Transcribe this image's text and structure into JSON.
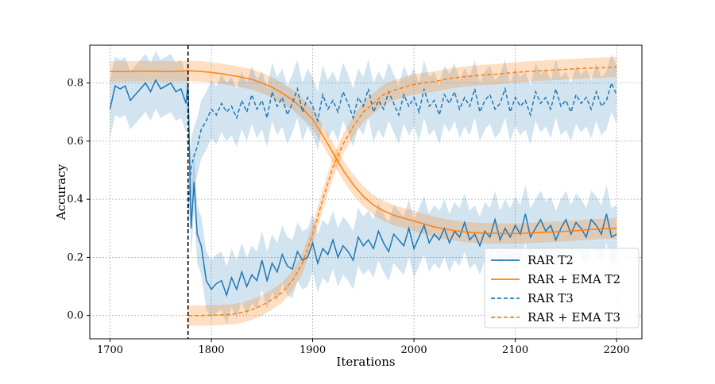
{
  "chart_data": {
    "type": "line",
    "title": "",
    "xlabel": "Iterations",
    "ylabel": "Accuracy",
    "xlim": [
      1680,
      2225
    ],
    "ylim": [
      -0.08,
      0.93
    ],
    "xticks": [
      1700,
      1800,
      1900,
      2000,
      2100,
      2200
    ],
    "yticks": [
      0.0,
      0.2,
      0.4,
      0.6,
      0.8
    ],
    "ytick_labels": [
      "0.0",
      "0.2",
      "0.4",
      "0.6",
      "0.8"
    ],
    "grid": true,
    "legend_position": "lower-right",
    "vline": {
      "x": 1777,
      "style": "dashed",
      "color": "#000000"
    },
    "colors": {
      "blue": "#1f77b4",
      "orange": "#ff7f0e"
    },
    "series": [
      {
        "name": "RAR T2",
        "color": "#1f77b4",
        "linestyle": "solid",
        "band": "blue",
        "x": [
          1700,
          1705,
          1710,
          1715,
          1720,
          1725,
          1730,
          1735,
          1740,
          1745,
          1750,
          1755,
          1760,
          1765,
          1770,
          1775,
          1777,
          1780,
          1783,
          1786,
          1790,
          1795,
          1800,
          1805,
          1810,
          1815,
          1820,
          1825,
          1830,
          1835,
          1840,
          1845,
          1850,
          1855,
          1860,
          1865,
          1870,
          1875,
          1880,
          1885,
          1890,
          1895,
          1900,
          1905,
          1910,
          1915,
          1920,
          1925,
          1930,
          1935,
          1940,
          1945,
          1950,
          1955,
          1960,
          1965,
          1970,
          1975,
          1980,
          1985,
          1990,
          1995,
          2000,
          2005,
          2010,
          2015,
          2020,
          2025,
          2030,
          2035,
          2040,
          2045,
          2050,
          2055,
          2060,
          2065,
          2070,
          2075,
          2080,
          2085,
          2090,
          2095,
          2100,
          2105,
          2110,
          2115,
          2120,
          2125,
          2130,
          2135,
          2140,
          2145,
          2150,
          2155,
          2160,
          2165,
          2170,
          2175,
          2180,
          2185,
          2190,
          2195,
          2200
        ],
        "values": [
          0.71,
          0.79,
          0.78,
          0.79,
          0.74,
          0.76,
          0.78,
          0.8,
          0.77,
          0.81,
          0.78,
          0.79,
          0.8,
          0.77,
          0.78,
          0.73,
          0.8,
          0.3,
          0.46,
          0.28,
          0.24,
          0.12,
          0.09,
          0.11,
          0.12,
          0.07,
          0.13,
          0.09,
          0.15,
          0.1,
          0.14,
          0.12,
          0.19,
          0.12,
          0.18,
          0.15,
          0.21,
          0.17,
          0.16,
          0.22,
          0.19,
          0.2,
          0.25,
          0.18,
          0.23,
          0.21,
          0.26,
          0.2,
          0.24,
          0.22,
          0.19,
          0.27,
          0.24,
          0.26,
          0.23,
          0.29,
          0.25,
          0.22,
          0.28,
          0.26,
          0.24,
          0.3,
          0.23,
          0.27,
          0.31,
          0.25,
          0.28,
          0.26,
          0.3,
          0.25,
          0.29,
          0.27,
          0.32,
          0.26,
          0.28,
          0.24,
          0.29,
          0.27,
          0.33,
          0.26,
          0.3,
          0.27,
          0.31,
          0.28,
          0.35,
          0.27,
          0.3,
          0.33,
          0.29,
          0.31,
          0.26,
          0.3,
          0.33,
          0.28,
          0.32,
          0.3,
          0.27,
          0.33,
          0.31,
          0.28,
          0.35,
          0.27,
          0.28
        ],
        "band_width": 0.1
      },
      {
        "name": "RAR + EMA T2",
        "color": "#ff7f0e",
        "linestyle": "solid",
        "band": "orange",
        "x": [
          1700,
          1710,
          1720,
          1730,
          1740,
          1750,
          1760,
          1770,
          1777,
          1790,
          1800,
          1810,
          1820,
          1830,
          1840,
          1850,
          1860,
          1870,
          1880,
          1890,
          1900,
          1910,
          1920,
          1930,
          1940,
          1950,
          1960,
          1970,
          1980,
          1990,
          2000,
          2010,
          2020,
          2030,
          2040,
          2050,
          2060,
          2070,
          2080,
          2090,
          2100,
          2110,
          2120,
          2130,
          2140,
          2150,
          2160,
          2170,
          2180,
          2190,
          2200
        ],
        "values": [
          0.84,
          0.84,
          0.84,
          0.841,
          0.841,
          0.84,
          0.84,
          0.841,
          0.842,
          0.84,
          0.836,
          0.832,
          0.826,
          0.82,
          0.812,
          0.8,
          0.785,
          0.765,
          0.742,
          0.712,
          0.675,
          0.62,
          0.56,
          0.5,
          0.45,
          0.41,
          0.38,
          0.36,
          0.345,
          0.335,
          0.325,
          0.315,
          0.305,
          0.298,
          0.292,
          0.288,
          0.285,
          0.283,
          0.283,
          0.282,
          0.282,
          0.283,
          0.285,
          0.287,
          0.288,
          0.29,
          0.292,
          0.295,
          0.297,
          0.299,
          0.3
        ],
        "band_width": 0.035
      },
      {
        "name": "RAR T3",
        "color": "#1f77b4",
        "linestyle": "dashed",
        "band": "blue",
        "x": [
          1777,
          1780,
          1783,
          1786,
          1790,
          1795,
          1800,
          1805,
          1810,
          1815,
          1820,
          1825,
          1830,
          1835,
          1840,
          1845,
          1850,
          1855,
          1860,
          1865,
          1870,
          1875,
          1880,
          1885,
          1890,
          1895,
          1900,
          1905,
          1910,
          1915,
          1920,
          1925,
          1930,
          1935,
          1940,
          1945,
          1950,
          1955,
          1960,
          1965,
          1970,
          1975,
          1980,
          1985,
          1990,
          1995,
          2000,
          2005,
          2010,
          2015,
          2020,
          2025,
          2030,
          2035,
          2040,
          2045,
          2050,
          2055,
          2060,
          2065,
          2070,
          2075,
          2080,
          2085,
          2090,
          2095,
          2100,
          2105,
          2110,
          2115,
          2120,
          2125,
          2130,
          2135,
          2140,
          2145,
          2150,
          2155,
          2160,
          2165,
          2170,
          2175,
          2180,
          2185,
          2190,
          2195,
          2200
        ],
        "values": [
          0.35,
          0.51,
          0.55,
          0.58,
          0.64,
          0.67,
          0.71,
          0.69,
          0.73,
          0.7,
          0.72,
          0.68,
          0.74,
          0.7,
          0.76,
          0.71,
          0.74,
          0.68,
          0.77,
          0.72,
          0.75,
          0.69,
          0.73,
          0.78,
          0.7,
          0.75,
          0.72,
          0.67,
          0.76,
          0.71,
          0.74,
          0.7,
          0.77,
          0.73,
          0.68,
          0.75,
          0.72,
          0.78,
          0.7,
          0.74,
          0.71,
          0.77,
          0.73,
          0.69,
          0.76,
          0.72,
          0.75,
          0.7,
          0.78,
          0.72,
          0.74,
          0.69,
          0.76,
          0.73,
          0.77,
          0.71,
          0.75,
          0.72,
          0.78,
          0.7,
          0.74,
          0.76,
          0.71,
          0.73,
          0.78,
          0.7,
          0.75,
          0.72,
          0.74,
          0.69,
          0.77,
          0.73,
          0.75,
          0.71,
          0.78,
          0.72,
          0.74,
          0.7,
          0.76,
          0.73,
          0.75,
          0.71,
          0.77,
          0.72,
          0.74,
          0.8,
          0.76
        ],
        "band_width": 0.1
      },
      {
        "name": "RAR + EMA T3",
        "color": "#ff7f0e",
        "linestyle": "dashed",
        "band": "orange",
        "x": [
          1777,
          1790,
          1800,
          1810,
          1820,
          1830,
          1840,
          1850,
          1860,
          1870,
          1880,
          1890,
          1900,
          1910,
          1920,
          1930,
          1940,
          1950,
          1960,
          1970,
          1980,
          1990,
          2000,
          2010,
          2020,
          2030,
          2040,
          2050,
          2060,
          2070,
          2080,
          2090,
          2100,
          2110,
          2120,
          2130,
          2140,
          2150,
          2160,
          2170,
          2180,
          2190,
          2200
        ],
        "values": [
          0.0,
          0.0,
          0.001,
          0.002,
          0.004,
          0.01,
          0.02,
          0.035,
          0.055,
          0.08,
          0.12,
          0.18,
          0.28,
          0.4,
          0.51,
          0.59,
          0.65,
          0.7,
          0.73,
          0.76,
          0.775,
          0.785,
          0.795,
          0.8,
          0.805,
          0.812,
          0.818,
          0.822,
          0.825,
          0.828,
          0.83,
          0.833,
          0.836,
          0.839,
          0.841,
          0.843,
          0.845,
          0.847,
          0.849,
          0.851,
          0.852,
          0.853,
          0.855
        ],
        "band_width": 0.035
      }
    ]
  }
}
